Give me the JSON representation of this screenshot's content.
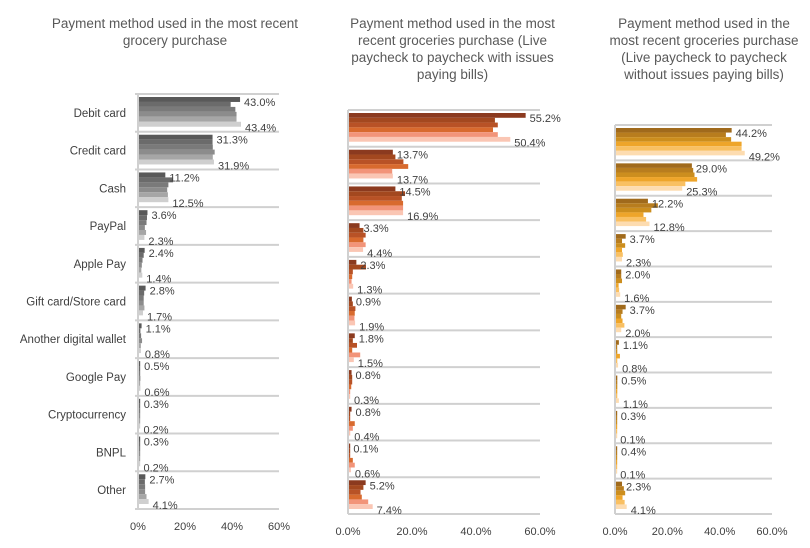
{
  "chart_data": [
    {
      "type": "bar",
      "orientation": "horizontal",
      "title": "Payment method used in the most recent grocery purchase",
      "categories": [
        "Debit card",
        "Credit card",
        "Cash",
        "PayPal",
        "Apple Pay",
        "Gift card/Store card",
        "Another digital wallet",
        "Google Pay",
        "Cryptocurrency",
        "BNPL",
        "Other"
      ],
      "series": [
        {
          "name": "s1",
          "color": "#595959",
          "values": [
            43.0,
            31.3,
            11.2,
            3.6,
            2.4,
            2.8,
            1.1,
            0.5,
            0.3,
            0.3,
            2.7
          ]
        },
        {
          "name": "s2",
          "color": "#6b6b6b",
          "values": [
            39.0,
            31.3,
            14.5,
            3.4,
            2.0,
            2.2,
            0.6,
            0.4,
            0.2,
            0.2,
            2.5
          ]
        },
        {
          "name": "s3",
          "color": "#7a7a7a",
          "values": [
            41.0,
            31.4,
            12.5,
            3.2,
            1.5,
            2.0,
            0.9,
            0.5,
            0.2,
            0.2,
            2.6
          ]
        },
        {
          "name": "s4",
          "color": "#8c8c8c",
          "values": [
            41.5,
            32.2,
            12.0,
            2.5,
            1.2,
            2.0,
            1.3,
            0.6,
            0.2,
            0.2,
            2.6
          ]
        },
        {
          "name": "s5",
          "color": "#a6a6a6",
          "values": [
            41.5,
            31.4,
            12.3,
            3.0,
            1.0,
            2.3,
            0.8,
            0.5,
            0.3,
            0.3,
            3.2
          ]
        },
        {
          "name": "s6",
          "color": "#cfcfcf",
          "values": [
            43.4,
            31.9,
            12.5,
            2.3,
            1.4,
            1.7,
            0.8,
            0.6,
            0.2,
            0.2,
            4.1
          ]
        }
      ],
      "data_labels_first": [
        "43.0%",
        "31.3%",
        "11.2%",
        "3.6%",
        "2.4%",
        "2.8%",
        "1.1%",
        "0.5%",
        "0.3%",
        "0.3%",
        "2.7%"
      ],
      "data_labels_last": [
        "43.4%",
        "31.9%",
        "12.5%",
        "2.3%",
        "1.4%",
        "1.7%",
        "0.8%",
        "0.6%",
        "0.2%",
        "0.2%",
        "4.1%"
      ],
      "xlim": [
        0,
        60
      ],
      "xticks": [
        "0%",
        "20%",
        "40%",
        "60%"
      ],
      "xlabel": "",
      "ylabel": "",
      "grid": "category separators",
      "legend": "none"
    },
    {
      "type": "bar",
      "orientation": "horizontal",
      "title": "Payment method used in the most recent groceries purchase (Live paycheck to paycheck with issues paying bills)",
      "categories": [
        "Debit card",
        "Credit card",
        "Cash",
        "PayPal",
        "Apple Pay",
        "Gift card/Store card",
        "Another digital wallet",
        "Google Pay",
        "Cryptocurrency",
        "BNPL",
        "Other"
      ],
      "series": [
        {
          "name": "s1",
          "color": "#8b3a1f",
          "values": [
            55.2,
            13.7,
            14.5,
            3.3,
            2.3,
            0.9,
            1.8,
            0.8,
            0.8,
            0.1,
            5.2
          ]
        },
        {
          "name": "s2",
          "color": "#a3481f",
          "values": [
            45.6,
            14.5,
            17.5,
            4.5,
            5.3,
            1.2,
            1.2,
            1.0,
            0.1,
            0.1,
            4.5
          ]
        },
        {
          "name": "s3",
          "color": "#b85226",
          "values": [
            46.5,
            17.0,
            16.5,
            5.2,
            1.2,
            2.0,
            2.5,
            1.0,
            0.1,
            0.2,
            3.6
          ]
        },
        {
          "name": "s4",
          "color": "#d86a2e",
          "values": [
            45.0,
            18.5,
            16.9,
            4.5,
            1.0,
            1.8,
            1.0,
            0.7,
            1.8,
            1.2,
            4.0
          ]
        },
        {
          "name": "s5",
          "color": "#f29479",
          "values": [
            46.5,
            13.5,
            16.9,
            5.2,
            0.8,
            1.7,
            3.5,
            0.3,
            1.2,
            1.8,
            6.0
          ]
        },
        {
          "name": "s6",
          "color": "#fac6b4",
          "values": [
            50.4,
            13.7,
            16.9,
            4.4,
            1.3,
            1.9,
            1.5,
            0.3,
            0.4,
            0.6,
            7.4
          ]
        }
      ],
      "data_labels_first": [
        "55.2%",
        "13.7%",
        "14.5%",
        "3.3%",
        "2.3%",
        "0.9%",
        "1.8%",
        "0.8%",
        "0.8%",
        "0.1%",
        "5.2%"
      ],
      "data_labels_last": [
        "50.4%",
        "13.7%",
        "16.9%",
        "4.4%",
        "1.3%",
        "1.9%",
        "1.5%",
        "0.3%",
        "0.4%",
        "0.6%",
        "7.4%"
      ],
      "xlim": [
        0,
        60
      ],
      "xticks": [
        "0.0%",
        "20.0%",
        "40.0%",
        "60.0%"
      ],
      "xlabel": "",
      "ylabel": "",
      "grid": "category separators",
      "legend": "none"
    },
    {
      "type": "bar",
      "orientation": "horizontal",
      "title": "Payment method used in the most recent groceries purchase (Live paycheck to paycheck without issues paying bills)",
      "categories": [
        "Debit card",
        "Credit card",
        "Cash",
        "PayPal",
        "Apple Pay",
        "Gift card/Store card",
        "Another digital wallet",
        "Google Pay",
        "Cryptocurrency",
        "BNPL",
        "Other"
      ],
      "series": [
        {
          "name": "s1",
          "color": "#a06a1c",
          "values": [
            44.2,
            29.0,
            12.2,
            3.7,
            2.0,
            3.7,
            1.1,
            0.5,
            0.3,
            0.4,
            2.3
          ]
        },
        {
          "name": "s2",
          "color": "#b87d1e",
          "values": [
            42.0,
            29.5,
            16.0,
            2.3,
            2.0,
            2.5,
            0.3,
            0.5,
            0.2,
            0.3,
            3.0
          ]
        },
        {
          "name": "s3",
          "color": "#cc8e1e",
          "values": [
            44.0,
            30.0,
            13.5,
            3.5,
            2.3,
            2.0,
            0.5,
            0.5,
            0.2,
            0.3,
            3.5
          ]
        },
        {
          "name": "s4",
          "color": "#eea52a",
          "values": [
            48.0,
            31.0,
            10.5,
            2.3,
            1.0,
            2.5,
            1.5,
            0.5,
            0.2,
            0.2,
            2.5
          ]
        },
        {
          "name": "s5",
          "color": "#f9c062",
          "values": [
            48.0,
            26.5,
            11.5,
            2.6,
            1.2,
            3.2,
            0.5,
            0.5,
            0.1,
            0.1,
            3.3
          ]
        },
        {
          "name": "s6",
          "color": "#fddcb0",
          "values": [
            49.2,
            25.3,
            12.8,
            2.3,
            1.6,
            2.0,
            0.8,
            1.1,
            0.1,
            0.1,
            4.1
          ]
        }
      ],
      "data_labels_first": [
        "44.2%",
        "29.0%",
        "12.2%",
        "3.7%",
        "2.0%",
        "3.7%",
        "1.1%",
        "0.5%",
        "0.3%",
        "0.4%",
        "2.3%"
      ],
      "data_labels_last": [
        "49.2%",
        "25.3%",
        "12.8%",
        "2.3%",
        "1.6%",
        "2.0%",
        "0.8%",
        "1.1%",
        "0.1%",
        "0.1%",
        "4.1%"
      ],
      "xlim": [
        0,
        60
      ],
      "xticks": [
        "0.0%",
        "20.0%",
        "40.0%",
        "60.0%"
      ],
      "xlabel": "",
      "ylabel": "",
      "grid": "category separators",
      "legend": "none"
    }
  ]
}
